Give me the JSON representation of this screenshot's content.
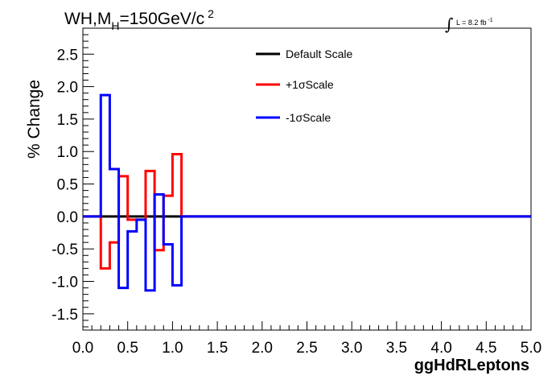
{
  "chart_data": {
    "type": "line",
    "title": {
      "prefix": "WH,M",
      "sub": "H",
      "main": "=150GeV/c",
      "sup": "2"
    },
    "lumi": {
      "text": "L = 8.2 fb",
      "sup": "-1"
    },
    "xlabel": "ggHdRLeptons",
    "ylabel": "% Change",
    "xlim": [
      0.0,
      5.0
    ],
    "ylim": [
      -1.75,
      2.9
    ],
    "x_ticks": [
      "0.0",
      "0.5",
      "1.0",
      "1.5",
      "2.0",
      "2.5",
      "3.0",
      "3.5",
      "4.0",
      "4.5",
      "5.0"
    ],
    "y_ticks": [
      "-1.5",
      "-1.0",
      "-0.5",
      "0.0",
      "0.5",
      "1.0",
      "1.5",
      "2.0",
      "2.5"
    ],
    "grid": false,
    "legend_position": "top-center",
    "bin_edges": [
      0.0,
      0.1,
      0.2,
      0.3,
      0.4,
      0.5,
      0.6,
      0.7,
      0.8,
      0.9,
      1.0,
      1.1,
      1.2,
      1.3,
      1.4,
      1.5,
      1.6,
      1.7,
      1.8,
      1.9,
      2.0,
      2.1,
      2.2,
      2.3,
      2.4,
      2.5,
      2.6,
      2.7,
      2.8,
      2.9,
      3.0,
      3.1,
      3.2,
      3.3,
      3.4,
      3.5,
      3.6,
      3.7,
      3.8,
      3.9,
      4.0,
      4.1,
      4.2,
      4.3,
      4.4,
      4.5,
      4.6,
      4.7,
      4.8,
      4.9,
      5.0
    ],
    "series": [
      {
        "name": "Default Scale",
        "color": "#000000",
        "values": [
          0,
          0,
          0,
          0,
          0,
          0,
          0,
          0,
          0,
          0,
          0,
          0,
          0,
          0,
          0,
          0,
          0,
          0,
          0,
          0,
          0,
          0,
          0,
          0,
          0,
          0,
          0,
          0,
          0,
          0,
          0,
          0,
          0,
          0,
          0,
          0,
          0,
          0,
          0,
          0,
          0,
          0,
          0,
          0,
          0,
          0,
          0,
          0,
          0,
          0
        ]
      },
      {
        "name": "+1σScale",
        "color": "#ff0000",
        "values": [
          0,
          0,
          -0.8,
          -0.4,
          0.62,
          -0.05,
          -0.05,
          0.7,
          -0.52,
          0.32,
          0.96,
          0,
          0,
          0,
          0,
          0,
          0,
          0,
          0,
          0,
          0,
          0,
          0,
          0,
          0,
          0,
          0,
          0,
          0,
          0,
          0,
          0,
          0,
          0,
          0,
          0,
          0,
          0,
          0,
          0,
          0,
          0,
          0,
          0,
          0,
          0,
          0,
          0,
          0,
          0
        ]
      },
      {
        "name": "-1σScale",
        "color": "#0000ff",
        "values": [
          0,
          0,
          1.87,
          0.73,
          -1.1,
          -0.23,
          -0.05,
          -1.14,
          0.34,
          -0.43,
          -1.06,
          0,
          0,
          0,
          0,
          0,
          0,
          0,
          0,
          0,
          0,
          0,
          0,
          0,
          0,
          0,
          0,
          0,
          0,
          0,
          0,
          0,
          0,
          0,
          0,
          0,
          0,
          0,
          0,
          0,
          0,
          0,
          0,
          0,
          0,
          0,
          0,
          0,
          0,
          0
        ]
      }
    ]
  }
}
